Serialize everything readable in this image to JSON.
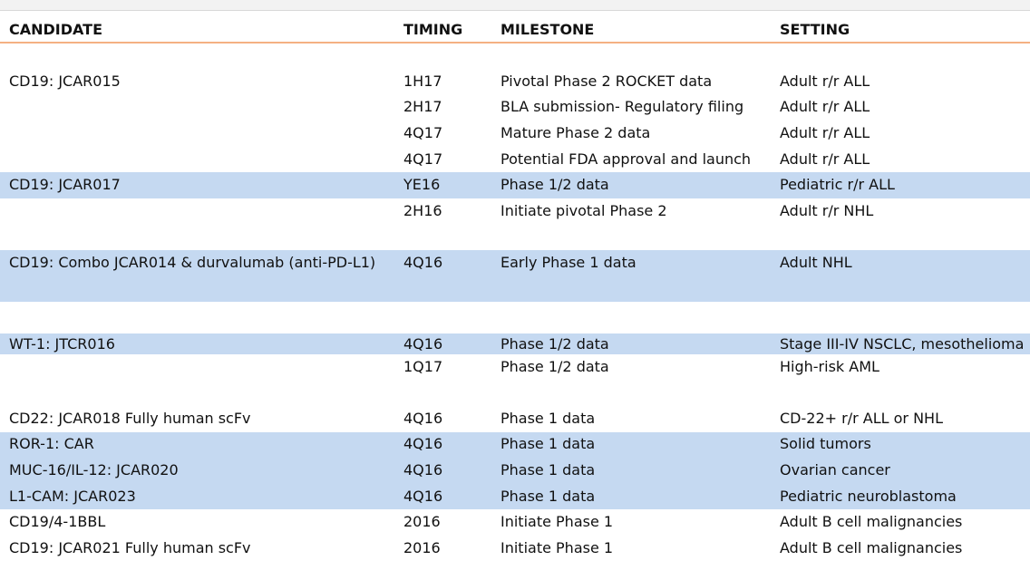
{
  "table": {
    "columns": [
      "CANDIDATE",
      "TIMING",
      "MILESTONE",
      "SETTING"
    ],
    "rows": [
      [
        "CD19: JCAR015",
        "1H17",
        "Pivotal Phase 2 ROCKET data",
        "Adult r/r ALL"
      ],
      [
        null,
        "2H17",
        "BLA submission- Regulatory filing",
        "Adult r/r ALL"
      ],
      [
        null,
        "4Q17",
        "Mature Phase 2 data",
        "Adult r/r ALL"
      ],
      [
        null,
        "4Q17",
        "Potential FDA approval and launch",
        "Adult r/r ALL"
      ],
      [
        "CD19: JCAR017",
        "YE16",
        "Phase 1/2 data",
        "Pediatric r/r ALL"
      ],
      [
        null,
        "2H16",
        "Initiate pivotal Phase 2",
        "Adult r/r NHL"
      ],
      [
        "CD19: Combo JCAR014 & durvalumab (anti-PD-L1)",
        "4Q16",
        "Early Phase 1 data",
        "Adult NHL"
      ],
      [
        "WT-1: JTCR016",
        "4Q16",
        "Phase 1/2 data",
        "Stage III-IV NSCLC, mesothelioma"
      ],
      [
        null,
        "1Q17",
        "Phase 1/2 data",
        "High-risk AML"
      ],
      [
        "CD22: JCAR018 Fully human scFv",
        "4Q16",
        "Phase 1 data",
        "CD-22+ r/r ALL or NHL"
      ],
      [
        "ROR-1: CAR",
        "4Q16",
        "Phase 1 data",
        "Solid tumors"
      ],
      [
        "MUC-16/IL-12: JCAR020",
        "4Q16",
        "Phase 1 data",
        "Ovarian cancer"
      ],
      [
        "L1-CAM: JCAR023",
        "4Q16",
        "Phase 1 data",
        "Pediatric neuroblastoma"
      ],
      [
        "CD19/4-1BBL",
        "2016",
        "Initiate Phase 1",
        "Adult B cell malignancies"
      ],
      [
        "CD19: JCAR021 Fully human scFv",
        "2016",
        "Initiate Phase 1",
        "Adult B cell malignancies"
      ]
    ]
  }
}
